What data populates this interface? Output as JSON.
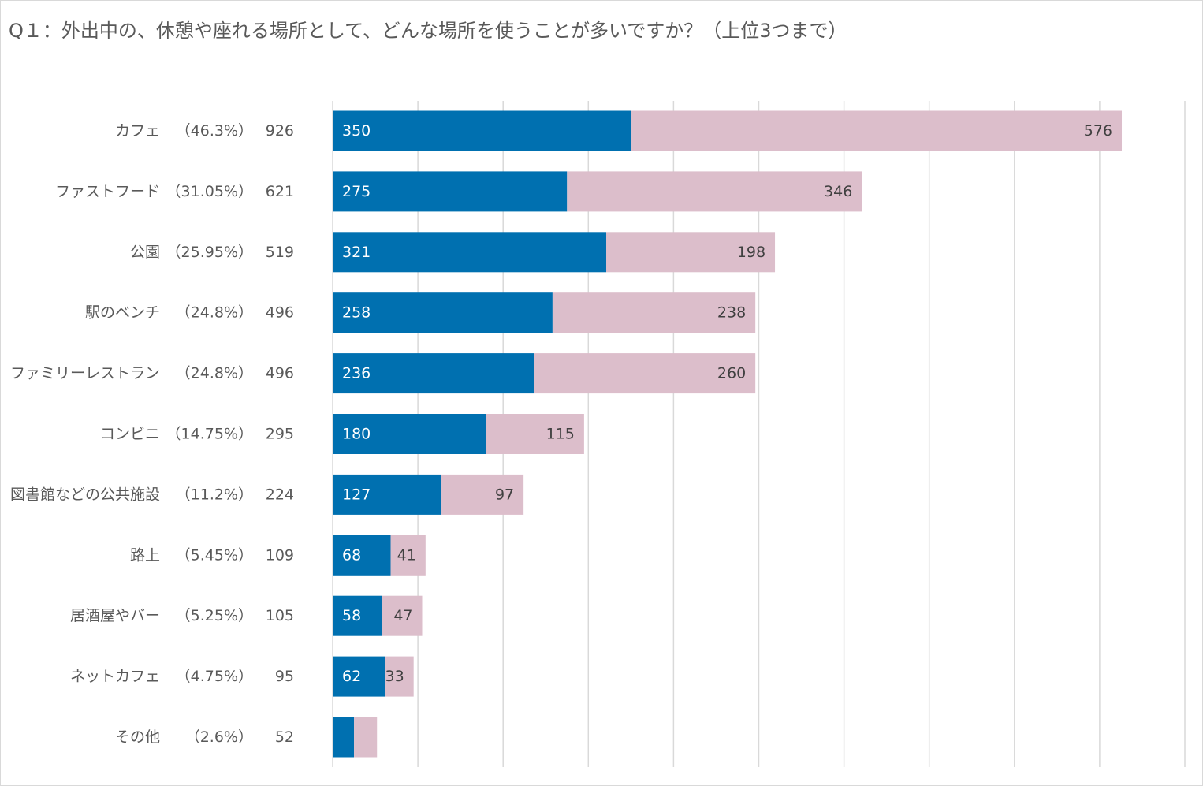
{
  "chart_data": {
    "type": "bar",
    "orientation": "horizontal",
    "stacked": true,
    "title": "Q１：外出中の、休憩や座れる場所として、どんな場所を使うことが多いですか？（上位3つまで）",
    "categories": [
      "カフェ",
      "ファストフード",
      "公園",
      "駅のベンチ",
      "ファミリーレストラン",
      "コンビニ",
      "図書館などの公共施設",
      "路上",
      "居酒屋やバー",
      "ネットカフェ",
      "その他"
    ],
    "percent_labels": [
      "（46.3%）",
      "（31.05%）",
      "（25.95%）",
      "（24.8%）",
      "（24.8%）",
      "（14.75%）",
      "（11.2%）",
      "（5.45%）",
      "（5.25%）",
      "（4.75%）",
      "（2.6%）"
    ],
    "totals": [
      926,
      621,
      519,
      496,
      496,
      295,
      224,
      109,
      105,
      95,
      52
    ],
    "series": [
      {
        "name": "series-1",
        "color": "#0070b0",
        "values": [
          350,
          275,
          321,
          258,
          236,
          180,
          127,
          68,
          58,
          62,
          25
        ],
        "labels_shown": [
          true,
          true,
          true,
          true,
          true,
          true,
          true,
          true,
          true,
          true,
          false
        ]
      },
      {
        "name": "series-2",
        "color": "#dcbecb",
        "values": [
          576,
          346,
          198,
          238,
          260,
          115,
          97,
          41,
          47,
          33,
          27
        ],
        "labels_shown": [
          true,
          true,
          true,
          true,
          true,
          true,
          true,
          true,
          true,
          true,
          false
        ]
      }
    ],
    "xlim": [
      0,
      1000
    ],
    "grid": true,
    "legend": "none",
    "xlabel": "",
    "ylabel": ""
  }
}
